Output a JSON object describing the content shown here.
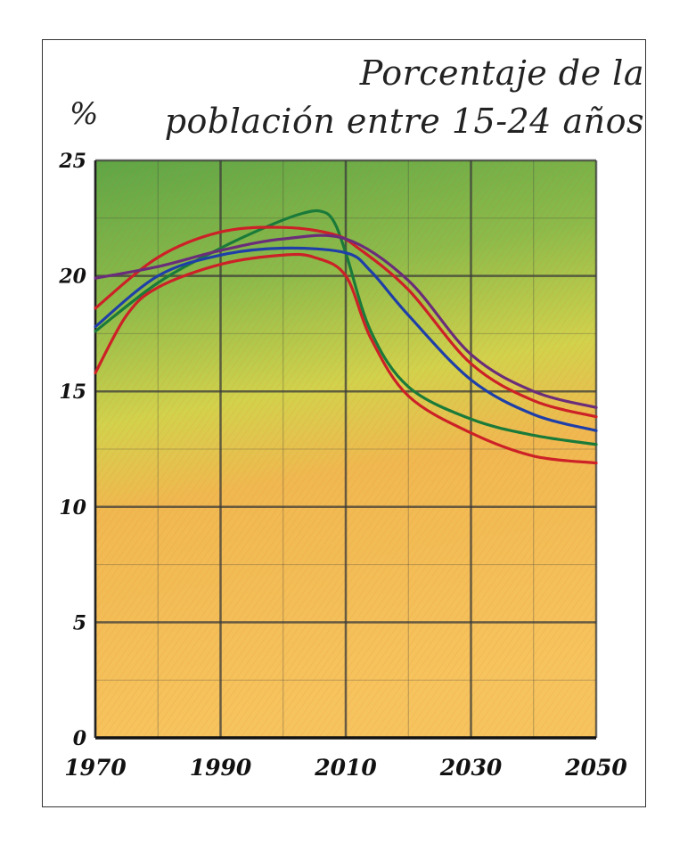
{
  "title_line1": "Porcentaje de la",
  "title_line2": "población entre 15-24 años",
  "unit_label": "%",
  "chart_data": {
    "type": "line",
    "title": "Porcentaje de la población entre 15-24 años",
    "xlabel": "",
    "ylabel": "%",
    "xlim": [
      1970,
      2050
    ],
    "ylim": [
      0,
      25
    ],
    "grid": true,
    "xticks": [
      1970,
      1990,
      2010,
      2030,
      2050
    ],
    "xtick_labels": [
      "1970",
      "1990",
      "2010",
      "2030",
      "2050"
    ],
    "yticks": [
      0,
      5,
      10,
      15,
      20,
      25
    ],
    "ytick_labels": [
      "0",
      "5",
      "10",
      "15",
      "20",
      "25"
    ],
    "series": [
      {
        "name": "verde",
        "color": "#1a7a3a",
        "x": [
          1970,
          1980,
          1990,
          1998,
          2003,
          2006,
          2008,
          2010,
          2014,
          2020,
          2030,
          2040,
          2050
        ],
        "y": [
          17.6,
          19.7,
          21.2,
          22.2,
          22.7,
          22.8,
          22.4,
          21.0,
          17.6,
          15.2,
          13.8,
          13.1,
          12.7
        ]
      },
      {
        "name": "azul",
        "color": "#1f3fa8",
        "x": [
          1970,
          1980,
          1990,
          2000,
          2010,
          2014,
          2020,
          2030,
          2040,
          2050
        ],
        "y": [
          17.8,
          20.0,
          20.9,
          21.2,
          21.0,
          20.2,
          18.3,
          15.5,
          14.0,
          13.3
        ]
      },
      {
        "name": "rojo",
        "color": "#cc2127",
        "x": [
          1970,
          1980,
          1990,
          2000,
          2008,
          2012,
          2020,
          2030,
          2040,
          2050
        ],
        "y": [
          18.6,
          20.8,
          21.9,
          22.1,
          21.8,
          21.2,
          19.4,
          16.2,
          14.6,
          13.9
        ]
      },
      {
        "name": "morado",
        "color": "#6a2d7a",
        "x": [
          1970,
          1980,
          1990,
          2000,
          2010,
          2020,
          2030,
          2040,
          2050
        ],
        "y": [
          19.9,
          20.4,
          21.1,
          21.6,
          21.6,
          19.8,
          16.6,
          15.0,
          14.3
        ]
      },
      {
        "name": "rojo-bajo",
        "color": "#cc2127",
        "x": [
          1970,
          1975,
          1980,
          1990,
          2000,
          2005,
          2010,
          2014,
          2020,
          2030,
          2040,
          2050
        ],
        "y": [
          15.8,
          18.3,
          19.5,
          20.5,
          20.9,
          20.8,
          20.0,
          17.3,
          14.8,
          13.2,
          12.2,
          11.9
        ]
      }
    ]
  },
  "colors": {
    "background_top": "#6fb04a",
    "background_mid": "#d9d24a",
    "background_bottom": "#f3a84e",
    "grid": "#3a3a3a"
  }
}
